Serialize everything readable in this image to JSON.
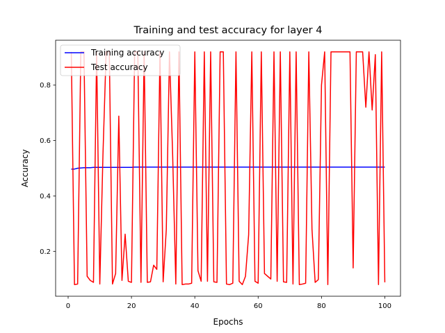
{
  "chart_data": {
    "type": "line",
    "title": "Training and test accuracy for layer 4",
    "xlabel": "Epochs",
    "ylabel": "Accuracy",
    "xlim": [
      -3.95,
      104.95
    ],
    "ylim": [
      0.038,
      0.962
    ],
    "x_ticks": [
      0,
      20,
      40,
      60,
      80,
      100
    ],
    "y_ticks": [
      0.2,
      0.4,
      0.6,
      0.8
    ],
    "grid": false,
    "legend_position": "top-left",
    "series": [
      {
        "name": "Training accuracy",
        "color": "#0000ff",
        "x": [
          1,
          2,
          3,
          4,
          5,
          6,
          7,
          8,
          9,
          10,
          11,
          12,
          13,
          14,
          15,
          16,
          17,
          18,
          19,
          20,
          21,
          22,
          23,
          24,
          25,
          26,
          27,
          28,
          29,
          30,
          31,
          32,
          33,
          34,
          35,
          36,
          37,
          38,
          39,
          40,
          41,
          42,
          43,
          44,
          45,
          46,
          47,
          48,
          49,
          50,
          51,
          52,
          53,
          54,
          55,
          56,
          57,
          58,
          59,
          60,
          61,
          62,
          63,
          64,
          65,
          66,
          67,
          68,
          69,
          70,
          71,
          72,
          73,
          74,
          75,
          76,
          77,
          78,
          79,
          80,
          81,
          82,
          83,
          84,
          85,
          86,
          87,
          88,
          89,
          90,
          91,
          92,
          93,
          94,
          95,
          96,
          97,
          98,
          99,
          100
        ],
        "values": [
          0.497,
          0.497,
          0.5,
          0.501,
          0.502,
          0.502,
          0.502,
          0.503,
          0.503,
          0.503,
          0.503,
          0.503,
          0.503,
          0.503,
          0.503,
          0.503,
          0.503,
          0.503,
          0.503,
          0.503,
          0.504,
          0.504,
          0.504,
          0.504,
          0.504,
          0.504,
          0.504,
          0.504,
          0.504,
          0.504,
          0.504,
          0.504,
          0.504,
          0.504,
          0.504,
          0.504,
          0.504,
          0.504,
          0.504,
          0.504,
          0.504,
          0.504,
          0.504,
          0.504,
          0.504,
          0.504,
          0.504,
          0.504,
          0.504,
          0.504,
          0.504,
          0.504,
          0.504,
          0.504,
          0.504,
          0.504,
          0.504,
          0.504,
          0.504,
          0.504,
          0.504,
          0.504,
          0.504,
          0.504,
          0.504,
          0.504,
          0.504,
          0.504,
          0.504,
          0.504,
          0.504,
          0.504,
          0.504,
          0.504,
          0.504,
          0.504,
          0.504,
          0.504,
          0.504,
          0.504,
          0.504,
          0.504,
          0.504,
          0.504,
          0.504,
          0.504,
          0.504,
          0.504,
          0.504,
          0.504,
          0.504,
          0.504,
          0.504,
          0.504,
          0.504,
          0.504,
          0.504,
          0.504,
          0.504,
          0.504
        ]
      },
      {
        "name": "Test accuracy",
        "color": "#ff0000",
        "x": [
          1,
          2,
          3,
          4,
          5,
          6,
          7,
          8,
          9,
          10,
          11,
          12,
          13,
          14,
          15,
          16,
          17,
          18,
          19,
          20,
          21,
          22,
          23,
          24,
          25,
          26,
          27,
          28,
          29,
          30,
          31,
          32,
          33,
          34,
          35,
          36,
          37,
          38,
          39,
          40,
          41,
          42,
          43,
          44,
          45,
          46,
          47,
          48,
          49,
          50,
          51,
          52,
          53,
          54,
          55,
          56,
          57,
          58,
          59,
          60,
          61,
          62,
          63,
          64,
          65,
          66,
          67,
          68,
          69,
          70,
          71,
          72,
          73,
          74,
          75,
          76,
          77,
          78,
          79,
          80,
          81,
          82,
          83,
          84,
          85,
          86,
          87,
          88,
          89,
          90,
          91,
          92,
          93,
          94,
          95,
          96,
          97,
          98,
          99,
          100
        ],
        "values": [
          0.92,
          0.08,
          0.082,
          0.92,
          0.92,
          0.11,
          0.095,
          0.088,
          0.92,
          0.082,
          0.55,
          0.92,
          0.92,
          0.082,
          0.12,
          0.688,
          0.095,
          0.262,
          0.092,
          0.088,
          0.92,
          0.92,
          0.088,
          0.92,
          0.088,
          0.09,
          0.15,
          0.135,
          0.92,
          0.09,
          0.28,
          0.92,
          0.55,
          0.082,
          0.92,
          0.08,
          0.082,
          0.082,
          0.085,
          0.92,
          0.13,
          0.092,
          0.92,
          0.092,
          0.92,
          0.09,
          0.088,
          0.92,
          0.92,
          0.082,
          0.08,
          0.085,
          0.92,
          0.092,
          0.08,
          0.11,
          0.26,
          0.92,
          0.092,
          0.085,
          0.92,
          0.12,
          0.11,
          0.1,
          0.92,
          0.092,
          0.92,
          0.09,
          0.088,
          0.92,
          0.082,
          0.92,
          0.08,
          0.082,
          0.085,
          0.92,
          0.28,
          0.088,
          0.098,
          0.8,
          0.92,
          0.08,
          0.92,
          0.92,
          0.92,
          0.92,
          0.92,
          0.92,
          0.92,
          0.14,
          0.92,
          0.92,
          0.92,
          0.72,
          0.92,
          0.71,
          0.91,
          0.08,
          0.92,
          0.088
        ]
      }
    ]
  }
}
